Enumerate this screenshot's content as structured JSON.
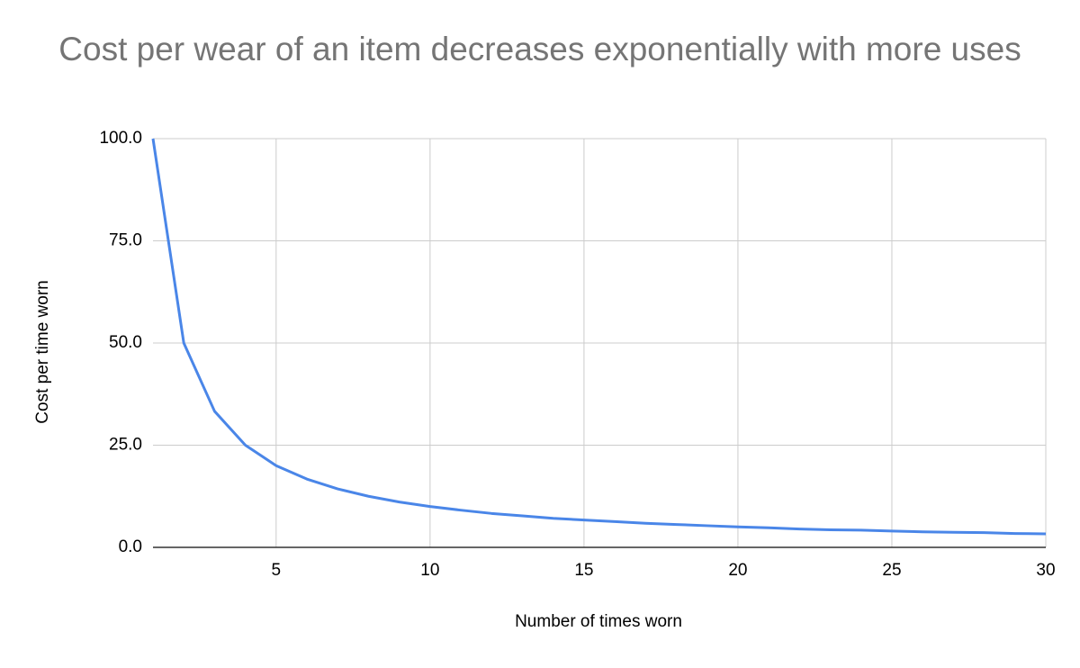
{
  "chart_data": {
    "type": "line",
    "title": "Cost per wear of an item decreases exponentially with more uses",
    "x_label": "Number of times worn",
    "y_label": "Cost per time worn",
    "x": [
      1,
      2,
      3,
      4,
      5,
      6,
      7,
      8,
      9,
      10,
      11,
      12,
      13,
      14,
      15,
      16,
      17,
      18,
      19,
      20,
      21,
      22,
      23,
      24,
      25,
      26,
      27,
      28,
      29,
      30
    ],
    "series": [
      {
        "name": "Cost per time worn",
        "color": "#4a86e8",
        "values": [
          100,
          50,
          33.3,
          25,
          20,
          16.7,
          14.3,
          12.5,
          11.1,
          10,
          9.1,
          8.3,
          7.7,
          7.1,
          6.7,
          6.3,
          5.9,
          5.6,
          5.3,
          5,
          4.8,
          4.5,
          4.3,
          4.2,
          4,
          3.8,
          3.7,
          3.6,
          3.4,
          3.3
        ]
      }
    ],
    "xlim": [
      1,
      30
    ],
    "xticks": [
      5,
      10,
      15,
      20,
      25,
      30
    ],
    "ylim": [
      0,
      100
    ],
    "yticks": [
      {
        "value": 0,
        "label": "0.0"
      },
      {
        "value": 25,
        "label": "25.0"
      },
      {
        "value": 50,
        "label": "50.0"
      },
      {
        "value": 75,
        "label": "75.0"
      },
      {
        "value": 100,
        "label": "100.0"
      }
    ],
    "grid": true
  }
}
